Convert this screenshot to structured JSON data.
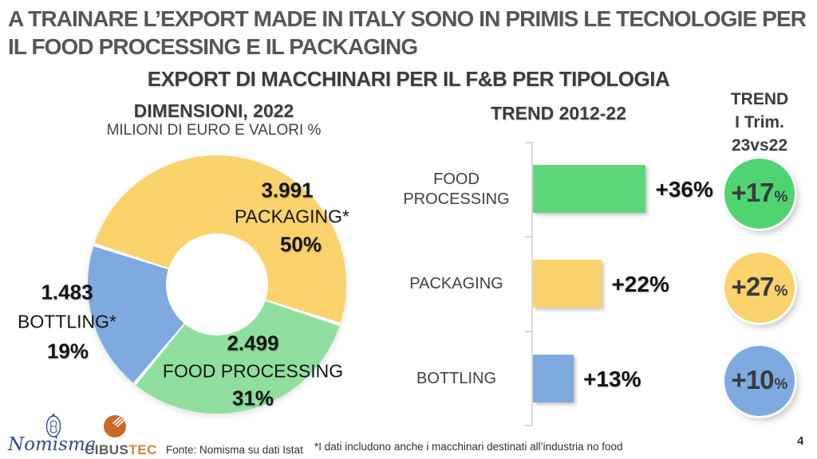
{
  "header": {
    "title_lines": [
      "A TRAINARE L’EXPORT MADE IN ITALY SONO IN PRIMIS LE TECNOLOGIE PER",
      "IL FOOD PROCESSING E IL PACKAGING"
    ],
    "subtitle": "EXPORT DI MACCHINARI PER IL F&B PER TIPOLOGIA"
  },
  "chart_data": [
    {
      "type": "pie",
      "variant": "donut",
      "title": "DIMENSIONI, 2022",
      "subtitle": "MILIONI DI EURO E VALORI %",
      "start_angle_deg": -72,
      "slices": [
        {
          "label": "PACKAGING*",
          "value": "3.991",
          "pct": 50,
          "pct_label": "50%",
          "color": "#FAD36C"
        },
        {
          "label": "FOOD PROCESSING",
          "value": "2.499",
          "pct": 31,
          "pct_label": "31%",
          "color": "#90DF9F"
        },
        {
          "label": "BOTTLING*",
          "value": "1.483",
          "pct": 19,
          "pct_label": "19%",
          "color": "#7FAAE0"
        }
      ]
    },
    {
      "type": "bar",
      "orientation": "horizontal",
      "title": "TREND 2012-22",
      "categories": [
        "FOOD PROCESSING",
        "PACKAGING",
        "BOTTLING"
      ],
      "values": [
        36,
        22,
        13
      ],
      "value_labels": [
        "+36%",
        "+22%",
        "+13%"
      ],
      "colors": [
        "#5DD77C",
        "#FAD36C",
        "#7FAAE0"
      ],
      "xlim": [
        0,
        40
      ],
      "grid": false,
      "legend": false
    },
    {
      "type": "kpi-circles",
      "title_lines": [
        "TREND",
        "I Trim.",
        "23vs22"
      ],
      "items": [
        {
          "value": "+17",
          "suffix": "%",
          "color": "#50D472"
        },
        {
          "value": "+27",
          "suffix": "%",
          "color": "#FAD36C"
        },
        {
          "value": "+10",
          "suffix": "%",
          "color": "#7FAAE0"
        }
      ]
    }
  ],
  "footer": {
    "nomisma_label": "Nomisma",
    "cibus_label": "CIBUS",
    "tec_label": "TEC",
    "source": "Fonte: Nomisma su dati Istat",
    "footnote": "*I dati includono anche i macchinari destinati all’industria no food",
    "page_number": "4"
  },
  "colors": {
    "title_gray": "#54565A",
    "heading_gray": "#3B3C3E",
    "label_black": "#141414",
    "axis_gray": "#D8D8D8",
    "nomisma_blue": "#2B4C8C",
    "cibus_orange": "#C76B28"
  }
}
